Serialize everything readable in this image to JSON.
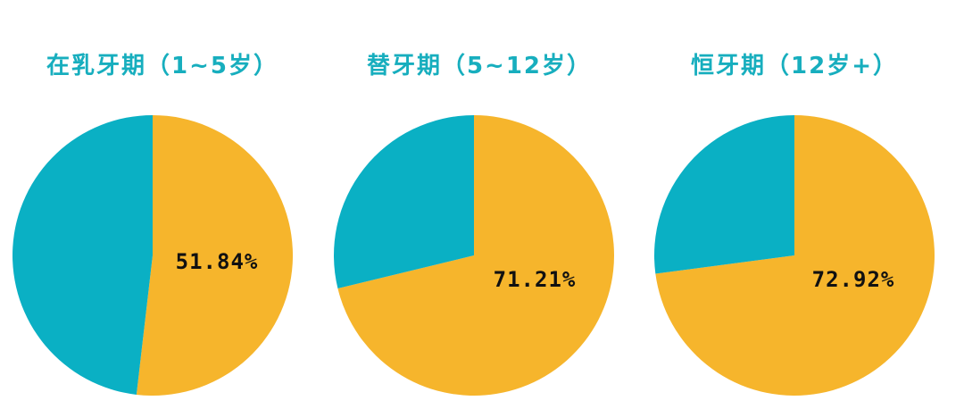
{
  "colors": {
    "primary": "#F6B52C",
    "secondary": "#0AB0C4",
    "title": "#17AEBE",
    "label": "#111111"
  },
  "chart_data": [
    {
      "type": "pie",
      "title": "在乳牙期（1~5岁）",
      "slices": [
        {
          "value": 51.84,
          "label": "51.84%",
          "color": "#F6B52C"
        },
        {
          "value": 48.16,
          "label": "",
          "color": "#0AB0C4"
        }
      ]
    },
    {
      "type": "pie",
      "title": "替牙期（5~12岁）",
      "slices": [
        {
          "value": 71.21,
          "label": "71.21%",
          "color": "#F6B52C"
        },
        {
          "value": 28.79,
          "label": "",
          "color": "#0AB0C4"
        }
      ]
    },
    {
      "type": "pie",
      "title": "恒牙期（12岁+）",
      "slices": [
        {
          "value": 72.92,
          "label": "72.92%",
          "color": "#F6B52C"
        },
        {
          "value": 27.08,
          "label": "",
          "color": "#0AB0C4"
        }
      ]
    }
  ]
}
